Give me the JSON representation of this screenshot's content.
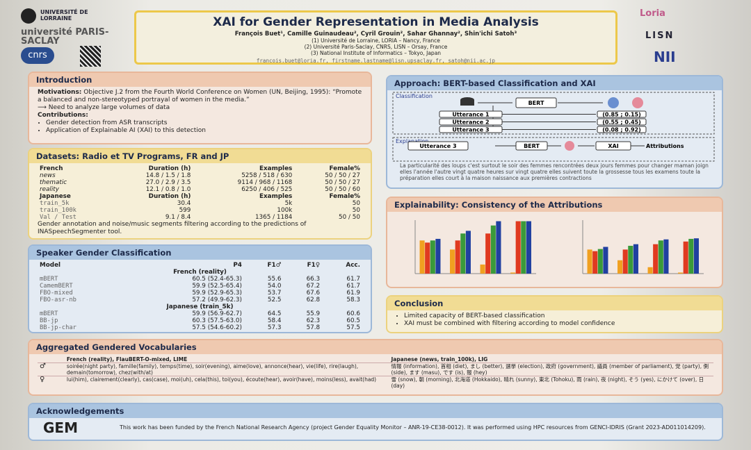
{
  "header": {
    "logos_left": [
      "UNIVERSITÉ DE LORRAINE",
      "université PARIS-SACLAY",
      "cnrs"
    ],
    "title": "XAI for Gender Representation in Media Analysis",
    "authors": "François Buet¹, Camille Guinaudeau², Cyril Grouin², Sahar Ghannay², Shin'ichi Satoh³",
    "affiliations": [
      "(1) Université de Lorraine, LORIA – Nancy, France",
      "(2) Université Paris-Saclay, CNRS, LISN – Orsay, France",
      "(3) National Institute of Informatics – Tokyo, Japan"
    ],
    "emails": "francois.buet@loria.fr, firstname.lastname@lisn.upsaclay.fr, satoh@nii.ac.jp",
    "logos_right": [
      "Loria",
      "LISN",
      "NII"
    ]
  },
  "introduction": {
    "title": "Introduction",
    "motivations_label": "Motivations:",
    "motivations": "Objective J.2 from the Fourth World Conference on Women (UN, Beijing, 1995): “Promote a balanced and non-stereotyped portrayal of women in the media.”",
    "need": "⟶ Need to analyze large volumes of data",
    "contributions_label": "Contributions:",
    "contributions": [
      "Gender detection from ASR transcripts",
      "Application of Explainable AI (XAI) to this detection"
    ]
  },
  "datasets": {
    "title": "Datasets: Radio et TV Programs, FR and JP",
    "header_fr": [
      "French",
      "Duration (h)",
      "Examples",
      "Female%"
    ],
    "rows_fr": [
      [
        "news",
        "14.8 / 1.5 / 1.8",
        "5258 / 518 / 630",
        "50 / 50 / 27"
      ],
      [
        "thematic",
        "27.0 / 2.9 / 3.5",
        "9114 / 968 / 1168",
        "50 / 50 / 27"
      ],
      [
        "reality",
        "12.1 / 0.8 / 1.0",
        "6250 / 406 / 525",
        "50 / 50 / 60"
      ]
    ],
    "header_jp": [
      "Japanese",
      "Duration (h)",
      "Examples",
      "Female%"
    ],
    "rows_jp": [
      [
        "train_5k",
        "30.4",
        "5k",
        "50"
      ],
      [
        "train_100k",
        "599",
        "100k",
        "50"
      ],
      [
        "Val / Test",
        "9.1 / 8.4",
        "1365 / 1184",
        "50 / 50"
      ]
    ],
    "note": "Gender annotation and noise/music segments filtering according to the predictions of INASpeechSegmenter tool."
  },
  "speaker_gender": {
    "title": "Speaker Gender Classification",
    "header": [
      "Model",
      "P4",
      "F1♂",
      "F1♀",
      "Acc."
    ],
    "groups": [
      {
        "label": "French (reality)",
        "rows": [
          [
            "mBERT",
            "60.5 (52.4-65.3)",
            "55.6",
            "66.3",
            "61.7"
          ],
          [
            "CamemBERT",
            "59.9 (52.5-65.4)",
            "54.0",
            "67.2",
            "61.7"
          ],
          [
            "FBO-mixed",
            "59.9 (52.9-65.3)",
            "53.7",
            "67.6",
            "61.9"
          ],
          [
            "FBO-asr-nb",
            "57.2 (49.9-62.3)",
            "52.5",
            "62.8",
            "58.3"
          ]
        ]
      },
      {
        "label": "Japanese (train_5k)",
        "rows": [
          [
            "mBERT",
            "59.9 (56.9-62.7)",
            "64.5",
            "55.9",
            "60.6"
          ],
          [
            "BB-jp",
            "60.3 (57.5-63.0)",
            "58.4",
            "62.3",
            "60.5"
          ],
          [
            "BB-jp-char",
            "57.5 (54.6-60.2)",
            "57.3",
            "57.8",
            "57.5"
          ]
        ]
      }
    ]
  },
  "approach": {
    "title": "Approach: BERT-based Classification and XAI",
    "classification_label": "Classification",
    "model": "BERT",
    "utterances": [
      "Utterance 1",
      "Utterance 2",
      "Utterance 3"
    ],
    "scores": [
      "(0.85 ; 0.15)",
      "(0.55 ; 0.45)",
      "(0.08 ; 0.92)"
    ],
    "explanation_label": "Explanation",
    "explanation_input": "Utterance 3",
    "xai": "XAI",
    "output": "Attributions",
    "sentence": "La particularité des loups c'est surtout le soir des femmes rencontrées deux jours femmes pour changer maman joign elles l'année l'autre vingt quatre heures sur vingt quatre elles suivent toute la grossesse tous les examens toute la préparation elles court à la maison naissance aux premières contractions"
  },
  "explainability": {
    "title": "Explainability: Consistency of the Attributions"
  },
  "chart_data": [
    {
      "type": "bar",
      "categories": [
        null,
        null,
        null,
        null
      ],
      "ylim": [
        0,
        1
      ],
      "series": [
        {
          "color": "#f0a020",
          "values": [
            0.62,
            0.45,
            0.17,
            0.02
          ]
        },
        {
          "color": "#e03a20",
          "values": [
            0.58,
            0.62,
            0.75,
            0.98
          ]
        },
        {
          "color": "#3a9a3a",
          "values": [
            0.62,
            0.75,
            0.9,
            0.98
          ]
        },
        {
          "color": "#2040a0",
          "values": [
            0.65,
            0.8,
            0.98,
            0.98
          ]
        }
      ]
    },
    {
      "type": "bar",
      "categories": [
        null,
        null,
        null,
        null
      ],
      "ylim": [
        0,
        1
      ],
      "series": [
        {
          "color": "#f0a020",
          "values": [
            0.45,
            0.25,
            0.12,
            0.02
          ]
        },
        {
          "color": "#e03a20",
          "values": [
            0.42,
            0.45,
            0.55,
            0.6
          ]
        },
        {
          "color": "#3a9a3a",
          "values": [
            0.46,
            0.52,
            0.62,
            0.65
          ]
        },
        {
          "color": "#2040a0",
          "values": [
            0.5,
            0.55,
            0.64,
            0.66
          ]
        }
      ]
    }
  ],
  "conclusion": {
    "title": "Conclusion",
    "bullets": [
      "Limited capacity of BERT-based classification",
      "XAI must be combined with filtering according to model confidence"
    ]
  },
  "vocabularies": {
    "title": "Aggregated Gendered Vocabularies",
    "columns": [
      "French (reality), FlauBERT-O-mixed, LIME",
      "Japanese (news, train_100k), LIG"
    ],
    "rows": [
      {
        "symbol": "♂",
        "cells": [
          "soirée(night party), famille(family), temps(time), soir(evening), aime(love), annonce(hear), vie(life), rire(laugh), demain(tomorrow), chez(with/at)",
          "情報 (information), 首相 (diet), まし (better), 選挙 (election), 政府 (government), 議員 (member of parliament), 党 (party), 側 (side), ます (masu), です (is), 報 (hey)"
        ]
      },
      {
        "symbol": "♀",
        "cells": [
          "lui(him), clairement(clearly), cas(case), moi(uh), cela(this), toi(you), écoute(hear), avoir(have), moins(less), avait(had)",
          "雪 (snow), 朝 (morning), 北海道 (Hokkaido), 晴れ (sunny), 東北 (Tohoku), 雨 (rain), 夜 (night), そう (yes), にかけて (over), 日 (day)"
        ]
      }
    ]
  },
  "acknowledgements": {
    "title": "Acknowledgements",
    "logo": "GEM",
    "text": "This work has been funded by the French National Research Agency (project Gender Equality Monitor – ANR-19-CE38-0012). It was performed using HPC resources from GENCI-IDRIS (Grant 2023-AD011014209)."
  }
}
